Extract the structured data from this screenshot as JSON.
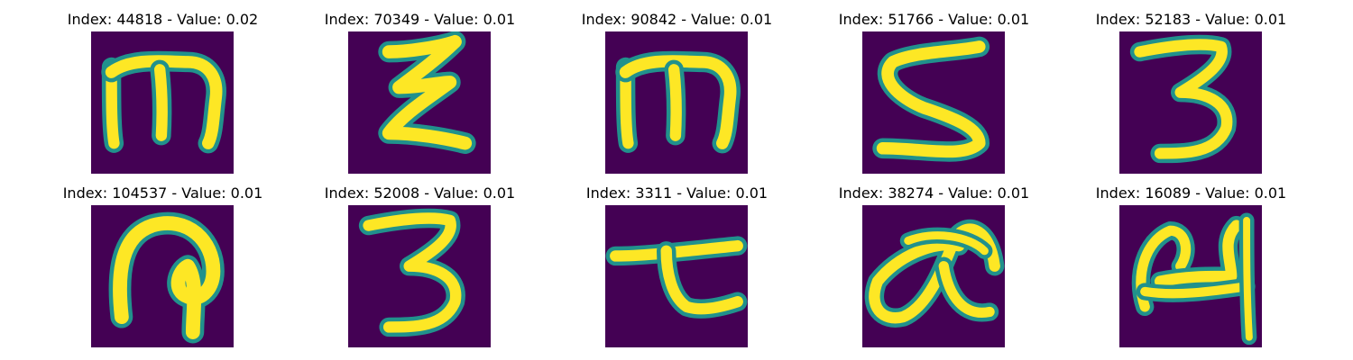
{
  "chart_data": {
    "type": "image-grid",
    "colormap": "viridis",
    "colors": {
      "background": "#440154",
      "mid": "#21918c",
      "stroke": "#fde725"
    },
    "panels": [
      {
        "title": "Index: 44818 - Value: 0.02",
        "index": 44818,
        "value": 0.02,
        "glyph": "m-shape-icon"
      },
      {
        "title": "Index: 70349 - Value: 0.01",
        "index": 70349,
        "value": 0.01,
        "glyph": "zigzag-e-icon"
      },
      {
        "title": "Index: 90842 - Value: 0.01",
        "index": 90842,
        "value": 0.01,
        "glyph": "m-shape-icon"
      },
      {
        "title": "Index: 51766 - Value: 0.01",
        "index": 51766,
        "value": 0.01,
        "glyph": "s-shape-icon"
      },
      {
        "title": "Index: 52183 - Value: 0.01",
        "index": 52183,
        "value": 0.01,
        "glyph": "three-shape-icon"
      },
      {
        "title": "Index: 104537 - Value: 0.01",
        "index": 104537,
        "value": 0.01,
        "glyph": "loop-shape-icon"
      },
      {
        "title": "Index: 52008 - Value: 0.01",
        "index": 52008,
        "value": 0.01,
        "glyph": "three-shape-icon"
      },
      {
        "title": "Index: 3311 - Value: 0.01",
        "index": 3311,
        "value": 0.01,
        "glyph": "hook-shape-icon"
      },
      {
        "title": "Index: 38274 - Value: 0.01",
        "index": 38274,
        "value": 0.01,
        "glyph": "alpha-shape-icon"
      },
      {
        "title": "Index: 16089 - Value: 0.01",
        "index": 16089,
        "value": 0.01,
        "glyph": "curl-shape-icon"
      }
    ]
  }
}
